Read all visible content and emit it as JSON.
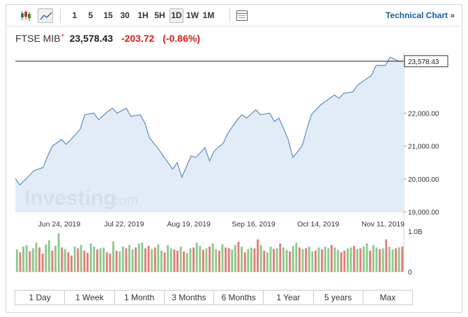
{
  "toolbar": {
    "candlestick_icon": "candlestick-icon",
    "area_icon": "area-chart-icon",
    "intervals": [
      {
        "label": "1",
        "active": false
      },
      {
        "label": "5",
        "active": false
      },
      {
        "label": "15",
        "active": false
      },
      {
        "label": "30",
        "active": false
      },
      {
        "label": "1H",
        "active": false
      },
      {
        "label": "5H",
        "active": false
      },
      {
        "label": "1D",
        "active": true
      },
      {
        "label": "1W",
        "active": false
      },
      {
        "label": "1M",
        "active": false
      }
    ],
    "table_icon": "table-icon",
    "technical_chart_label": "Technical Chart »"
  },
  "quote": {
    "name": "FTSE MIB",
    "star": "*",
    "price": "23,578.43",
    "change": "-203.72",
    "change_pct": "(-0.86%)"
  },
  "watermark": {
    "brand": "Investing",
    "suffix": ".com"
  },
  "chart_data": {
    "type": "area",
    "price_series": {
      "x": [
        "2019-06-05",
        "2019-06-07",
        "2019-06-11",
        "2019-06-13",
        "2019-06-17",
        "2019-06-19",
        "2019-06-21",
        "2019-06-25",
        "2019-06-27",
        "2019-07-01",
        "2019-07-03",
        "2019-07-05",
        "2019-07-09",
        "2019-07-11",
        "2019-07-15",
        "2019-07-17",
        "2019-07-19",
        "2019-07-23",
        "2019-07-25",
        "2019-07-29",
        "2019-07-31",
        "2019-08-02",
        "2019-08-06",
        "2019-08-08",
        "2019-08-12",
        "2019-08-14",
        "2019-08-16",
        "2019-08-20",
        "2019-08-22",
        "2019-08-26",
        "2019-08-28",
        "2019-08-30",
        "2019-09-03",
        "2019-09-05",
        "2019-09-09",
        "2019-09-11",
        "2019-09-13",
        "2019-09-17",
        "2019-09-19",
        "2019-09-23",
        "2019-09-25",
        "2019-09-27",
        "2019-10-01",
        "2019-10-03",
        "2019-10-07",
        "2019-10-09",
        "2019-10-11",
        "2019-10-15",
        "2019-10-17",
        "2019-10-21",
        "2019-10-23",
        "2019-10-25",
        "2019-10-29",
        "2019-10-31",
        "2019-11-04",
        "2019-11-06",
        "2019-11-08",
        "2019-11-12",
        "2019-11-14",
        "2019-11-18",
        "2019-11-20"
      ],
      "y": [
        20010,
        19820,
        20100,
        20250,
        20350,
        20700,
        21000,
        21200,
        21050,
        21350,
        21500,
        21950,
        22000,
        21800,
        22050,
        22150,
        22000,
        22150,
        21900,
        21950,
        21700,
        21250,
        20900,
        20700,
        20300,
        20500,
        20050,
        20700,
        20650,
        20950,
        20550,
        20850,
        21100,
        21400,
        21800,
        21950,
        21850,
        22100,
        21950,
        22000,
        21750,
        21850,
        21200,
        20650,
        21000,
        21500,
        21950,
        22250,
        22350,
        22550,
        22450,
        22600,
        22650,
        22850,
        23050,
        23150,
        23450,
        23450,
        23700,
        23580,
        23578
      ]
    },
    "volume_series": {
      "values": [
        0.55,
        0.48,
        0.62,
        0.66,
        0.5,
        0.58,
        0.72,
        0.6,
        0.45,
        0.68,
        0.78,
        0.52,
        0.64,
        0.95,
        0.6,
        0.56,
        0.48,
        0.4,
        0.62,
        0.58,
        0.66,
        0.52,
        0.47,
        0.7,
        0.62,
        0.55,
        0.58,
        0.6,
        0.48,
        0.45,
        0.75,
        0.52,
        0.5,
        0.62,
        0.58,
        0.66,
        0.55,
        0.6,
        0.7,
        0.72,
        0.58,
        0.64,
        0.56,
        0.6,
        0.68,
        0.52,
        0.48,
        0.66,
        0.58,
        0.55,
        0.52,
        0.62,
        0.5,
        0.46,
        0.58,
        0.6,
        0.72,
        0.64,
        0.54,
        0.58,
        0.62,
        0.7,
        0.56,
        0.52,
        0.68,
        0.6,
        0.58,
        0.55,
        0.66,
        0.74,
        0.62,
        0.48,
        0.56,
        0.6,
        0.58,
        0.8,
        0.66,
        0.52,
        0.48,
        0.62,
        0.56,
        0.58,
        0.7,
        0.6,
        0.54,
        0.5,
        0.64,
        0.72,
        0.6,
        0.56,
        0.58,
        0.62,
        0.5,
        0.52,
        0.6,
        0.55,
        0.62,
        0.58,
        0.66,
        0.6,
        0.54,
        0.48,
        0.52,
        0.58,
        0.6,
        0.64,
        0.56,
        0.58,
        0.62,
        0.7,
        0.52,
        0.66,
        0.6,
        0.56,
        0.58,
        0.8,
        0.62,
        0.55,
        0.58,
        0.6,
        0.62
      ],
      "up": [
        1,
        0,
        1,
        1,
        0,
        1,
        1,
        0,
        0,
        1,
        1,
        0,
        1,
        1,
        0,
        1,
        0,
        0,
        1,
        0,
        1,
        0,
        0,
        1,
        1,
        0,
        1,
        1,
        0,
        0,
        1,
        0,
        1,
        1,
        0,
        1,
        1,
        0,
        1,
        1,
        0,
        0,
        1,
        0,
        1,
        1,
        0,
        1,
        1,
        0,
        0,
        1,
        0,
        1,
        1,
        0,
        1,
        1,
        0,
        1,
        0,
        1,
        1,
        0,
        1,
        0,
        0,
        1,
        1,
        0,
        1,
        0,
        1,
        1,
        0,
        0,
        1,
        0,
        1,
        1,
        0,
        1,
        0,
        1,
        1,
        0,
        1,
        1,
        0,
        1,
        0,
        1,
        1,
        0,
        1,
        0,
        1,
        1,
        0,
        1,
        1,
        0,
        0,
        1,
        1,
        0,
        1,
        0,
        1,
        1,
        0,
        1,
        1,
        0,
        1,
        0,
        1,
        1,
        0,
        1,
        0
      ]
    },
    "y_ticks": [
      "19,000.00",
      "20,000.00",
      "21,000.00",
      "22,000.00"
    ],
    "y_tick_values": [
      19000,
      20000,
      21000,
      22000
    ],
    "ylim": [
      18980,
      23850
    ],
    "x_ticks": [
      {
        "label": "Jun 24, 2019",
        "x": "2019-06-24"
      },
      {
        "label": "Jul 22, 2019",
        "x": "2019-07-22"
      },
      {
        "label": "Aug 19, 2019",
        "x": "2019-08-19"
      },
      {
        "label": "Sep 16, 2019",
        "x": "2019-09-16"
      },
      {
        "label": "Oct 14, 2019",
        "x": "2019-10-14"
      },
      {
        "label": "Nov 11, 2019",
        "x": "2019-11-11"
      }
    ],
    "xlim": [
      "2019-06-05",
      "2019-11-20"
    ],
    "last_price_value": 23578.43,
    "last_price_label": "23,578.43",
    "volume_tick_labels": [
      "1.0B",
      "0"
    ],
    "colors": {
      "line": "#5b8bc7",
      "fill": "#dde9f5",
      "up": "#8cc98a",
      "down": "#e27b7b",
      "crosshair": "#222222"
    }
  },
  "ranges": [
    "1 Day",
    "1 Week",
    "1 Month",
    "3 Months",
    "6 Months",
    "1 Year",
    "5 years",
    "Max"
  ]
}
